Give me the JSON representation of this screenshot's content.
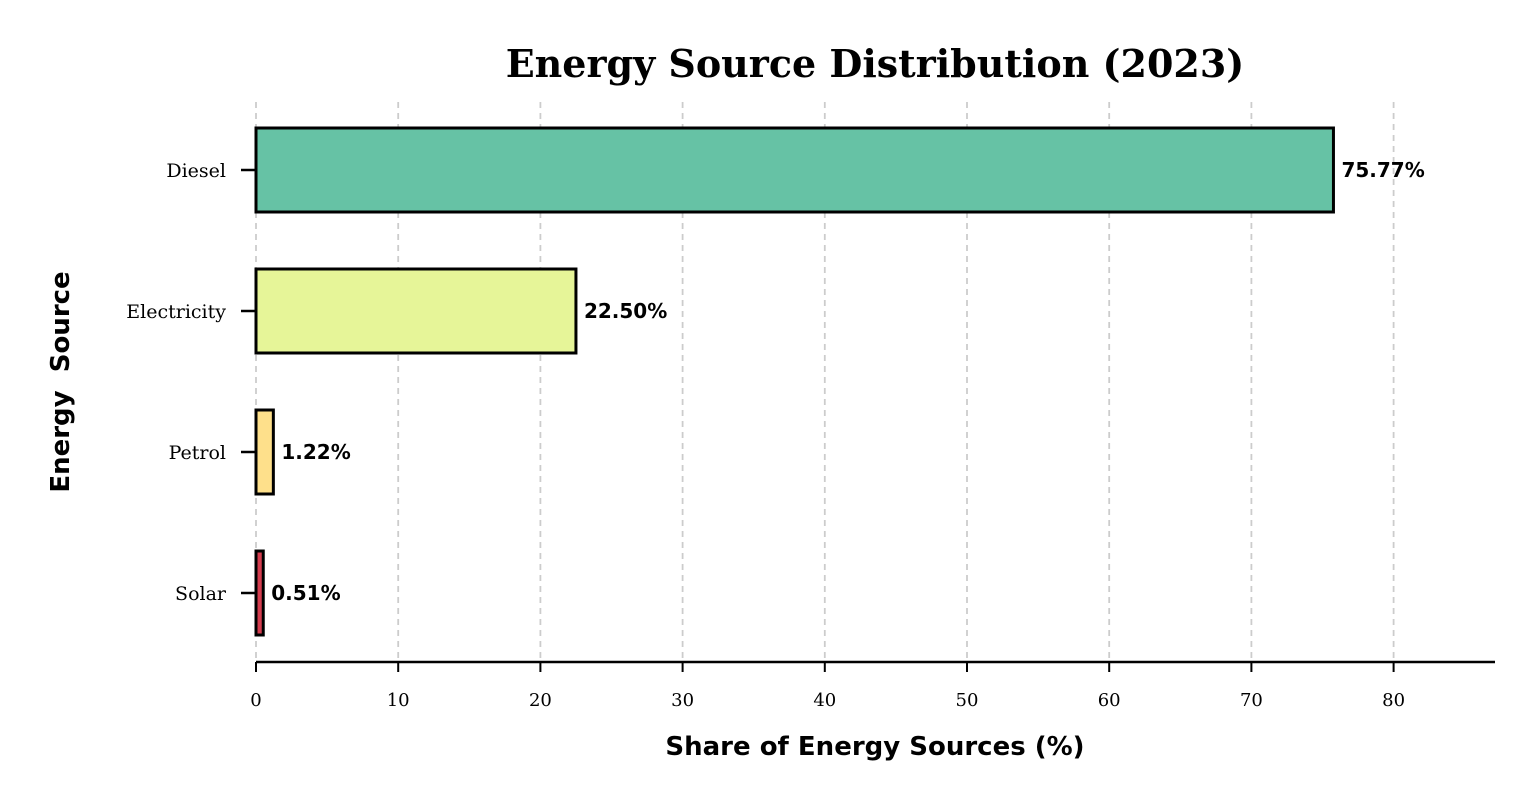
{
  "chart_data": {
    "type": "bar",
    "orientation": "horizontal",
    "title": "Energy Source Distribution (2023)",
    "xlabel": "Share of Energy Sources (%)",
    "ylabel": "Energy  Source",
    "xlim": [
      0,
      87
    ],
    "xticks": [
      0,
      10,
      20,
      30,
      40,
      50,
      60,
      70,
      80
    ],
    "grid": "vertical dashed",
    "categories": [
      "Diesel",
      "Electricity",
      "Petrol",
      "Solar"
    ],
    "values": [
      75.77,
      22.5,
      1.22,
      0.51
    ],
    "data_labels": [
      "75.77%",
      "22.50%",
      "1.22%",
      "0.51%"
    ],
    "colors": [
      "#66c2a5",
      "#e6f598",
      "#fee08b",
      "#d53e4f"
    ],
    "edge_color": "#000000",
    "grid_color": "#cccccc"
  }
}
